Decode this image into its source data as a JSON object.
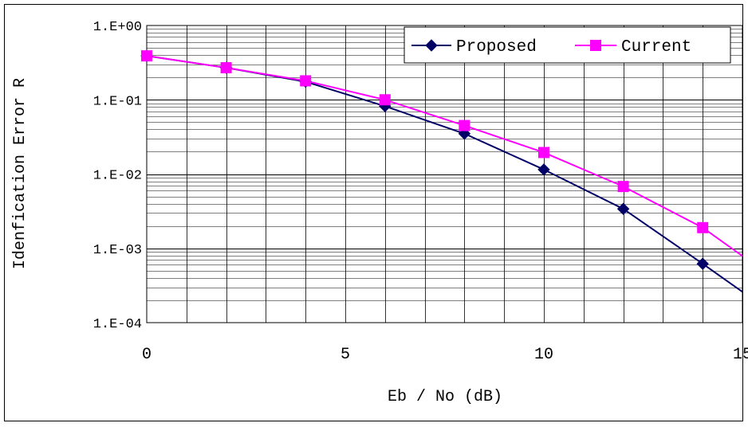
{
  "chart_data": {
    "type": "line",
    "title": "",
    "xlabel": "Eb / No (dB)",
    "ylabel": "Idenfication Error R",
    "y_scale": "log",
    "xlim": [
      0,
      15
    ],
    "ylim": [
      0.0001,
      1
    ],
    "grid": true,
    "legend_position": "top-right",
    "x_ticks": [
      0,
      5,
      10,
      15
    ],
    "x_tick_labels": [
      "0",
      "5",
      "10",
      "15"
    ],
    "y_ticks": [
      0.0001,
      0.001,
      0.01,
      0.1,
      1
    ],
    "y_tick_labels": [
      "1.E-04",
      "1.E-03",
      "1.E-02",
      "1.E-01",
      "1.E+00"
    ],
    "x": [
      0,
      2,
      4,
      6,
      8,
      10,
      12,
      14,
      15
    ],
    "series": [
      {
        "name": "Proposed",
        "color": "#000066",
        "marker": "diamond",
        "values": [
          0.39,
          0.27,
          0.175,
          0.082,
          0.035,
          0.0115,
          0.0034,
          0.00062,
          0.00026
        ],
        "marked": [
          true,
          true,
          true,
          true,
          true,
          true,
          true,
          true,
          false
        ]
      },
      {
        "name": "Current",
        "color": "#ff00ff",
        "marker": "square",
        "values": [
          0.39,
          0.27,
          0.18,
          0.1,
          0.045,
          0.0195,
          0.0068,
          0.0019,
          0.00079
        ],
        "marked": [
          true,
          true,
          true,
          true,
          true,
          true,
          true,
          true,
          false
        ]
      }
    ]
  }
}
